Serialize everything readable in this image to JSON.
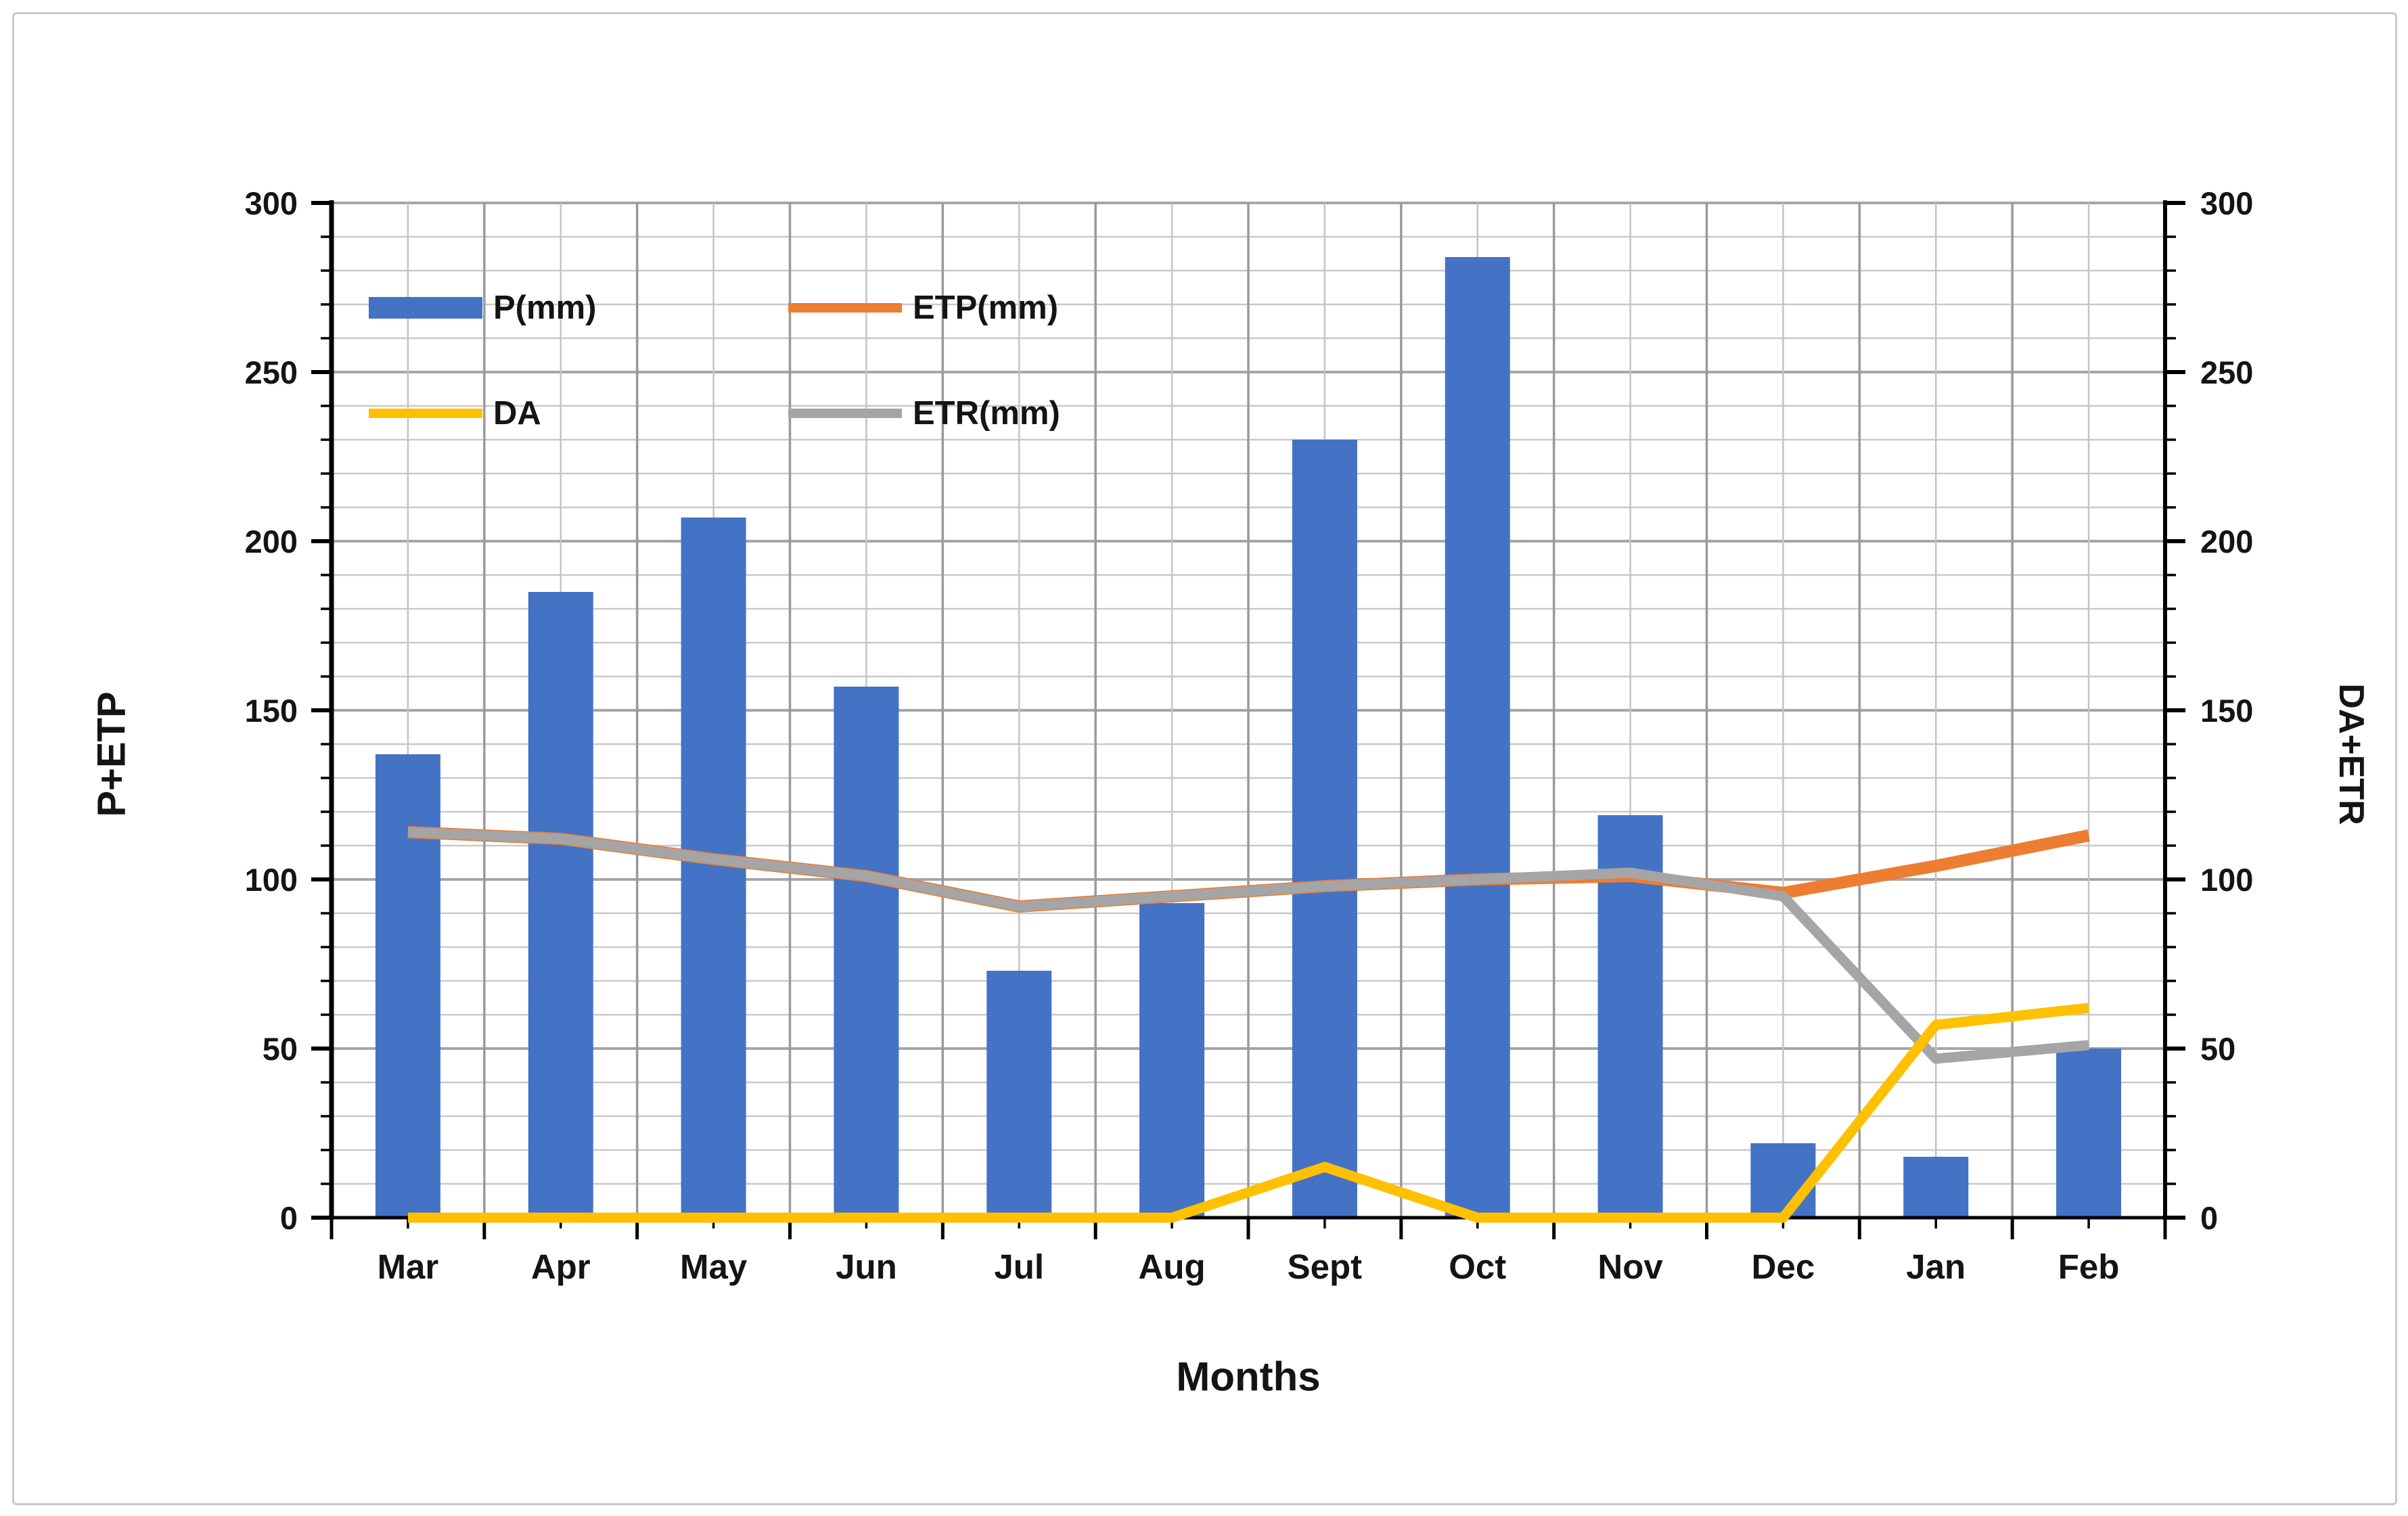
{
  "chart_data": {
    "type": "combo-bar-line",
    "title": "",
    "xlabel": "Months",
    "ylabel_left": "P+ETP",
    "ylabel_right": "DA+ETR",
    "categories": [
      "Mar",
      "Apr",
      "May",
      "Jun",
      "Jul",
      "Aug",
      "Sept",
      "Oct",
      "Nov",
      "Dec",
      "Jan",
      "Feb"
    ],
    "series": [
      {
        "name": "P(mm)",
        "type": "bar",
        "axis": "left",
        "color": "#4472C4",
        "values": [
          137,
          185,
          207,
          157,
          73,
          93,
          230,
          284,
          119,
          22,
          18,
          50
        ]
      },
      {
        "name": "ETP(mm)",
        "type": "line",
        "axis": "left",
        "color": "#ED7D31",
        "values": [
          114,
          112,
          106,
          101,
          92,
          95,
          98,
          100,
          101,
          96,
          104,
          113
        ]
      },
      {
        "name": "DA",
        "type": "line",
        "axis": "right",
        "color": "#FFC000",
        "values": [
          0,
          0,
          0,
          0,
          0,
          0,
          15,
          0,
          0,
          0,
          57,
          62
        ]
      },
      {
        "name": "ETR(mm)",
        "type": "line",
        "axis": "right",
        "color": "#A5A5A5",
        "values": [
          114,
          112,
          106,
          101,
          92,
          95,
          98,
          100,
          102,
          95,
          47,
          51
        ]
      }
    ],
    "line_draw_order": [
      1,
      3,
      2
    ],
    "axis_ticks": [
      0,
      50,
      100,
      150,
      200,
      250,
      300
    ],
    "y_min": 0,
    "y_max": 300,
    "y_major_step": 50,
    "y_minor_step": 10,
    "grid": true,
    "legend_position": "top-left-inside",
    "colors": {
      "grid_major": "#A6A6A6",
      "grid_minor": "#C9C9C9",
      "grid_vertical_major": "#9A9A9A",
      "grid_vertical_minor": "#C4C4C4",
      "axis_line": "#000000",
      "text": "#141414",
      "figure_border": "#C9C9C9",
      "background": "#FFFFFF"
    }
  }
}
